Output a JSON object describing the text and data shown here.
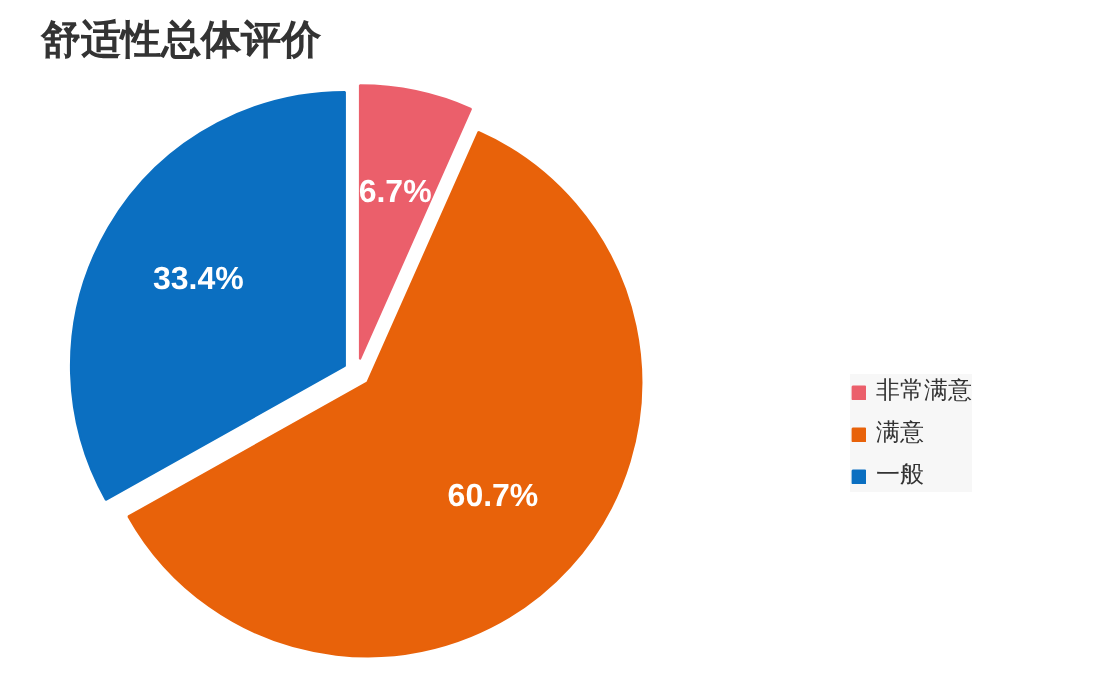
{
  "chart_data": {
    "type": "pie",
    "title": "舒适性总体评价",
    "categories": [
      "非常满意",
      "满意",
      "一般"
    ],
    "values": [
      6.7,
      60.7,
      33.4
    ],
    "colors": [
      "#eb5f6b",
      "#e8620a",
      "#0b6fc1"
    ],
    "value_labels": [
      "6.7%",
      "60.7%",
      "33.4%"
    ],
    "legend": "right"
  }
}
